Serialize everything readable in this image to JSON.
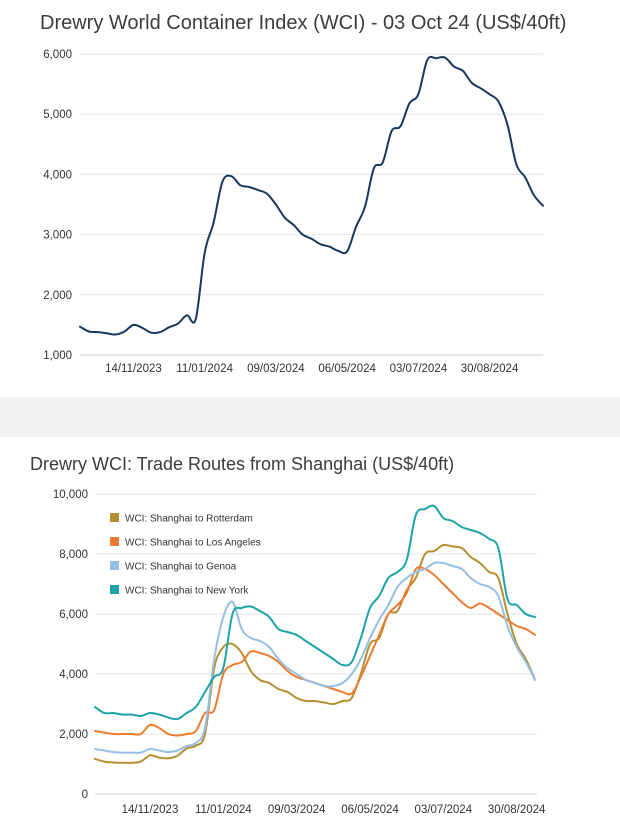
{
  "chart_data": [
    {
      "type": "line",
      "title": "Drewry World Container Index (WCI) - 03 Oct 24 (US$/40ft)",
      "ylim": [
        1000,
        6000
      ],
      "y_ticks": [
        1000,
        2000,
        3000,
        4000,
        5000,
        6000
      ],
      "y_tick_labels": [
        "1,000",
        "2,000",
        "3,000",
        "4,000",
        "5,000",
        "6,000"
      ],
      "x_tick_labels": [
        "14/11/2023",
        "11/01/2024",
        "09/03/2024",
        "06/05/2024",
        "03/07/2024",
        "30/08/2024"
      ],
      "x_tick_index": [
        6,
        14,
        22,
        30,
        38,
        46
      ],
      "grid": true,
      "series": [
        {
          "color": "#17375e",
          "values": [
            1470,
            1390,
            1380,
            1360,
            1340,
            1390,
            1500,
            1450,
            1370,
            1380,
            1460,
            1520,
            1660,
            1600,
            2700,
            3200,
            3880,
            3970,
            3820,
            3790,
            3740,
            3680,
            3500,
            3280,
            3160,
            3000,
            2930,
            2840,
            2800,
            2730,
            2720,
            3130,
            3460,
            4100,
            4200,
            4720,
            4800,
            5180,
            5330,
            5900,
            5930,
            5940,
            5790,
            5720,
            5520,
            5430,
            5330,
            5210,
            4830,
            4170,
            3950,
            3650,
            3480
          ]
        }
      ]
    },
    {
      "type": "line",
      "title": "Drewry WCI: Trade Routes from Shanghai (US$/40ft)",
      "ylim": [
        0,
        10000
      ],
      "y_ticks": [
        0,
        2000,
        4000,
        6000,
        8000,
        10000
      ],
      "y_tick_labels": [
        "0",
        "2,000",
        "4,000",
        "6,000",
        "8,000",
        "10,000"
      ],
      "x_tick_labels": [
        "14/11/2023",
        "11/01/2024",
        "09/03/2024",
        "06/05/2024",
        "03/07/2024",
        "30/08/2024"
      ],
      "x_tick_index": [
        6,
        14,
        22,
        30,
        38,
        46
      ],
      "grid": true,
      "legend_position": "top-left",
      "series": [
        {
          "name": "WCI: Shanghai to Rotterdam",
          "color": "#b58f32",
          "values": [
            1170,
            1080,
            1050,
            1040,
            1040,
            1080,
            1290,
            1210,
            1190,
            1280,
            1520,
            1610,
            2000,
            4200,
            4900,
            5000,
            4700,
            4100,
            3800,
            3700,
            3500,
            3400,
            3200,
            3100,
            3100,
            3050,
            3000,
            3100,
            3200,
            4000,
            5000,
            5200,
            6000,
            6100,
            6800,
            7200,
            8000,
            8100,
            8300,
            8250,
            8200,
            7900,
            7700,
            7400,
            7200,
            6000,
            5000,
            4500,
            3800
          ]
        },
        {
          "name": "WCI: Shanghai to Los Angeles",
          "color": "#ec7c30",
          "values": [
            2100,
            2050,
            2000,
            2000,
            2000,
            2000,
            2300,
            2200,
            2000,
            1950,
            2000,
            2100,
            2700,
            2800,
            4000,
            4300,
            4400,
            4750,
            4700,
            4600,
            4400,
            4100,
            3900,
            3800,
            3700,
            3600,
            3500,
            3400,
            3350,
            3900,
            4600,
            5300,
            6000,
            6300,
            6700,
            7500,
            7500,
            7300,
            7000,
            6700,
            6400,
            6200,
            6350,
            6200,
            6000,
            5800,
            5600,
            5500,
            5300
          ]
        },
        {
          "name": "WCI: Shanghai to Genoa",
          "color": "#96bfe6",
          "values": [
            1500,
            1450,
            1400,
            1380,
            1380,
            1380,
            1500,
            1450,
            1400,
            1450,
            1600,
            1700,
            2200,
            4500,
            5900,
            6400,
            5500,
            5200,
            5100,
            4900,
            4500,
            4200,
            4000,
            3800,
            3700,
            3600,
            3600,
            3700,
            4000,
            4500,
            5200,
            5800,
            6300,
            6900,
            7200,
            7400,
            7500,
            7700,
            7700,
            7600,
            7500,
            7200,
            7000,
            6900,
            6600,
            5600,
            4900,
            4400,
            3800
          ]
        },
        {
          "name": "WCI: Shanghai to New York",
          "color": "#1aa4a8",
          "values": [
            2900,
            2700,
            2700,
            2650,
            2650,
            2600,
            2700,
            2650,
            2550,
            2500,
            2700,
            2900,
            3400,
            3900,
            4200,
            6000,
            6200,
            6250,
            6100,
            5900,
            5500,
            5400,
            5300,
            5100,
            4900,
            4700,
            4500,
            4300,
            4400,
            5200,
            6200,
            6600,
            7200,
            7400,
            7800,
            9300,
            9500,
            9600,
            9200,
            9100,
            8900,
            8800,
            8700,
            8500,
            8200,
            6500,
            6300,
            6000,
            5900
          ]
        }
      ]
    }
  ]
}
